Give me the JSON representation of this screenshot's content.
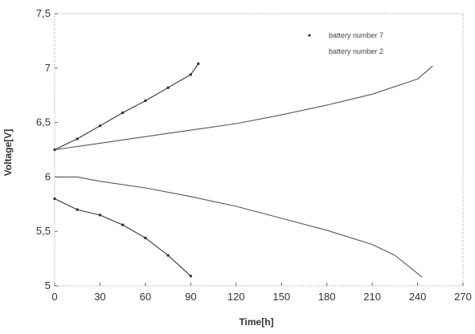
{
  "chart_data": {
    "type": "line",
    "xlabel": "Time[h]",
    "ylabel": "Voltage[V]",
    "xlim": [
      0,
      270
    ],
    "ylim": [
      5,
      7.5
    ],
    "x_ticks": [
      0,
      30,
      60,
      90,
      120,
      150,
      180,
      210,
      240,
      270
    ],
    "x_tick_labels": [
      "0",
      "30",
      "60",
      "90",
      "120",
      "150",
      "180",
      "210",
      "240",
      "270"
    ],
    "y_ticks": [
      5,
      5.5,
      6,
      6.5,
      7,
      7.5
    ],
    "y_tick_labels": [
      "5",
      "5,5",
      "6",
      "6,5",
      "7",
      "7,5"
    ],
    "grid": false,
    "legend_position": "top-right",
    "series": [
      {
        "name": "battery number 7",
        "marker": "dot",
        "color": "#333333",
        "curves": [
          {
            "x": [
              0,
              15,
              30,
              45,
              60,
              75,
              90,
              95
            ],
            "y": [
              6.25,
              6.35,
              6.47,
              6.59,
              6.7,
              6.82,
              6.94,
              7.04
            ]
          },
          {
            "x": [
              0,
              15,
              30,
              45,
              60,
              75,
              90
            ],
            "y": [
              5.8,
              5.7,
              5.65,
              5.56,
              5.44,
              5.28,
              5.09
            ]
          }
        ]
      },
      {
        "name": "battery number 2",
        "marker": "none",
        "color": "#555555",
        "curves": [
          {
            "x": [
              0,
              30,
              60,
              90,
              120,
              150,
              180,
              210,
              240,
              250
            ],
            "y": [
              6.25,
              6.31,
              6.37,
              6.43,
              6.49,
              6.57,
              6.66,
              6.76,
              6.9,
              7.02
            ]
          },
          {
            "x": [
              0,
              15,
              30,
              60,
              90,
              120,
              150,
              180,
              210,
              225,
              243
            ],
            "y": [
              6.0,
              6.0,
              5.96,
              5.9,
              5.82,
              5.73,
              5.62,
              5.51,
              5.38,
              5.28,
              5.08
            ]
          }
        ]
      }
    ]
  }
}
